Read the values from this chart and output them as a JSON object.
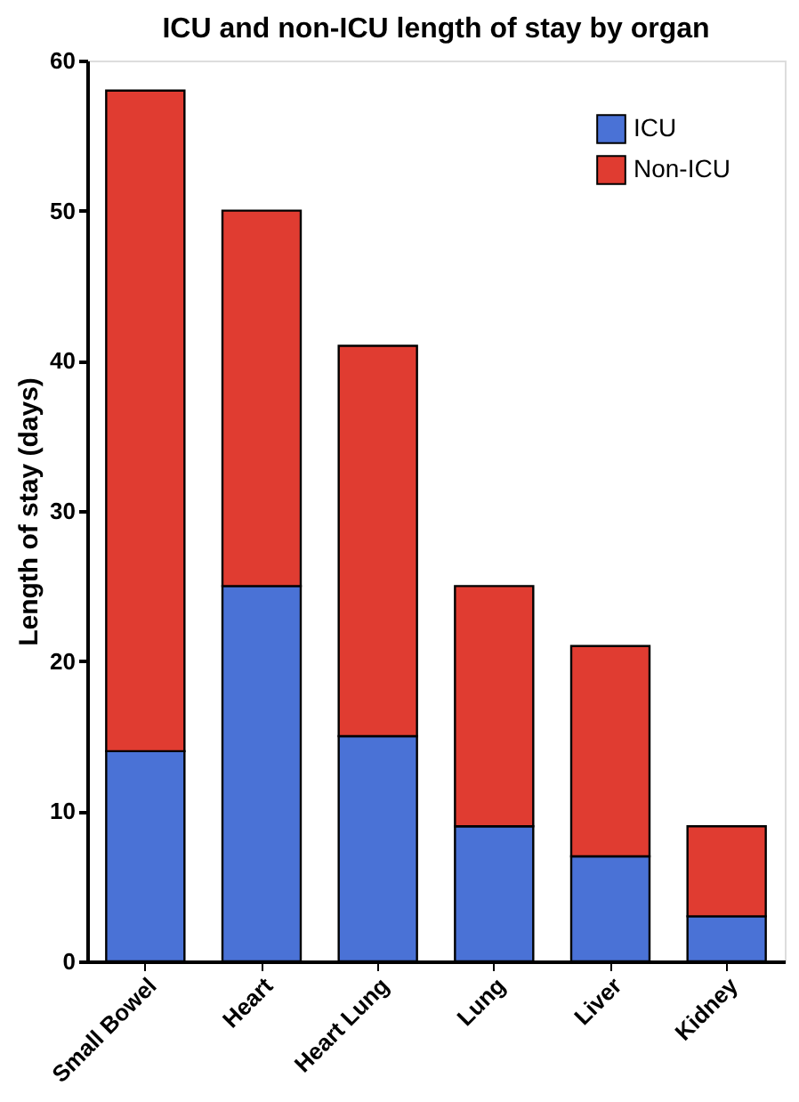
{
  "chart_data": {
    "type": "bar",
    "title": "ICU and non-ICU length of stay by organ",
    "ylabel": "Length of stay (days)",
    "categories": [
      "Small Bowel",
      "Heart",
      "Heart Lung",
      "Lung",
      "Liver",
      "Kidney"
    ],
    "stacked": true,
    "series": [
      {
        "name": "ICU",
        "color": "#4a72d6",
        "values": [
          14,
          25,
          15,
          9,
          7,
          3
        ]
      },
      {
        "name": "Non-ICU",
        "color": "#e03c31",
        "values": [
          44,
          25,
          26,
          16,
          14,
          6
        ]
      }
    ],
    "ylim": [
      0,
      60
    ],
    "yticks": [
      0,
      10,
      20,
      30,
      40,
      50,
      60
    ],
    "grid": false,
    "legend": "top right"
  }
}
